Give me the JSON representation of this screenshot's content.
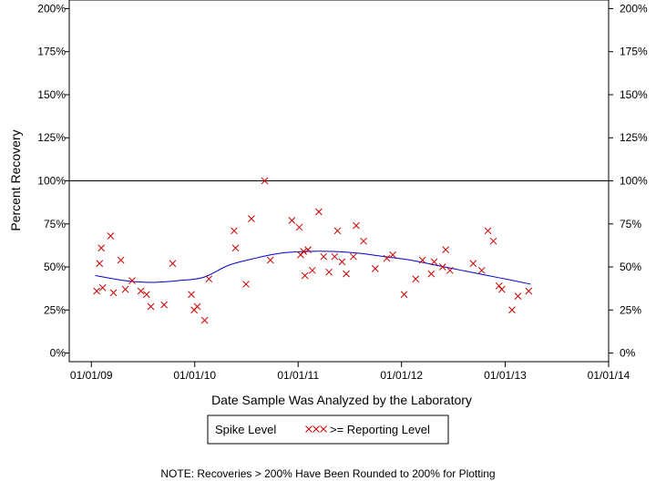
{
  "chart_data": {
    "type": "scatter",
    "xlabel": "Date Sample Was Analyzed by the Laboratory",
    "ylabel": "Percent Recovery",
    "x_ticks": [
      "01/01/09",
      "01/01/10",
      "01/01/11",
      "01/01/12",
      "01/01/13",
      "01/01/14"
    ],
    "x_range": [
      "2008-10-15",
      "2014-01-01"
    ],
    "y_ticks": [
      "0%",
      "25%",
      "50%",
      "75%",
      "100%",
      "125%",
      "150%",
      "175%",
      "200%"
    ],
    "ylim": [
      -5,
      205
    ],
    "reference_line": 100,
    "series": [
      {
        "name": ">= Reporting Level",
        "marker": "x",
        "color": "#cc0000",
        "points": [
          [
            "2009-01-20",
            36
          ],
          [
            "2009-01-30",
            52
          ],
          [
            "2009-02-05",
            61
          ],
          [
            "2009-02-10",
            38
          ],
          [
            "2009-03-10",
            68
          ],
          [
            "2009-03-20",
            35
          ],
          [
            "2009-04-15",
            54
          ],
          [
            "2009-05-01",
            37
          ],
          [
            "2009-05-25",
            42
          ],
          [
            "2009-06-25",
            36
          ],
          [
            "2009-07-15",
            34
          ],
          [
            "2009-07-30",
            27
          ],
          [
            "2009-09-15",
            28
          ],
          [
            "2009-10-15",
            52
          ],
          [
            "2009-12-20",
            34
          ],
          [
            "2009-12-30",
            25
          ],
          [
            "2010-01-10",
            27
          ],
          [
            "2010-02-05",
            19
          ],
          [
            "2010-02-20",
            43
          ],
          [
            "2010-05-20",
            71
          ],
          [
            "2010-05-25",
            61
          ],
          [
            "2010-07-01",
            40
          ],
          [
            "2010-07-20",
            78
          ],
          [
            "2010-09-05",
            100
          ],
          [
            "2010-09-25",
            54
          ],
          [
            "2010-12-10",
            77
          ],
          [
            "2011-01-05",
            73
          ],
          [
            "2011-01-10",
            57
          ],
          [
            "2011-01-20",
            59
          ],
          [
            "2011-01-25",
            45
          ],
          [
            "2011-02-05",
            60
          ],
          [
            "2011-02-20",
            48
          ],
          [
            "2011-03-15",
            82
          ],
          [
            "2011-04-01",
            56
          ],
          [
            "2011-04-20",
            47
          ],
          [
            "2011-05-10",
            56
          ],
          [
            "2011-05-20",
            71
          ],
          [
            "2011-06-05",
            53
          ],
          [
            "2011-06-20",
            46
          ],
          [
            "2011-07-15",
            56
          ],
          [
            "2011-07-25",
            74
          ],
          [
            "2011-08-20",
            65
          ],
          [
            "2011-09-30",
            49
          ],
          [
            "2011-11-10",
            55
          ],
          [
            "2011-12-01",
            57
          ],
          [
            "2012-01-10",
            34
          ],
          [
            "2012-02-20",
            43
          ],
          [
            "2012-03-15",
            54
          ],
          [
            "2012-04-15",
            46
          ],
          [
            "2012-04-25",
            53
          ],
          [
            "2012-05-25",
            50
          ],
          [
            "2012-06-05",
            60
          ],
          [
            "2012-06-20",
            48
          ],
          [
            "2012-09-10",
            52
          ],
          [
            "2012-10-10",
            48
          ],
          [
            "2012-11-01",
            71
          ],
          [
            "2012-11-20",
            65
          ],
          [
            "2012-12-10",
            39
          ],
          [
            "2012-12-20",
            37
          ],
          [
            "2013-01-25",
            25
          ],
          [
            "2013-02-15",
            33
          ],
          [
            "2013-03-25",
            36
          ]
        ]
      },
      {
        "name": "Spike Level",
        "type": "line",
        "color": "#0000cc",
        "points": [
          [
            "2009-01-15",
            45
          ],
          [
            "2009-05-01",
            42
          ],
          [
            "2009-08-01",
            41
          ],
          [
            "2009-11-01",
            42
          ],
          [
            "2010-02-01",
            44
          ],
          [
            "2010-05-01",
            51
          ],
          [
            "2010-08-01",
            55
          ],
          [
            "2010-11-01",
            58
          ],
          [
            "2011-02-01",
            59
          ],
          [
            "2011-05-01",
            59
          ],
          [
            "2011-08-01",
            58
          ],
          [
            "2011-11-01",
            56
          ],
          [
            "2012-02-01",
            54
          ],
          [
            "2012-05-01",
            51
          ],
          [
            "2012-08-01",
            48
          ],
          [
            "2012-11-01",
            45
          ],
          [
            "2013-02-01",
            42
          ],
          [
            "2013-04-01",
            40
          ]
        ]
      }
    ],
    "legend": {
      "position": "bottom",
      "items": [
        "Spike Level",
        ">= Reporting Level"
      ]
    },
    "note": "NOTE: Recoveries > 200% Have Been Rounded to 200% for Plotting"
  }
}
